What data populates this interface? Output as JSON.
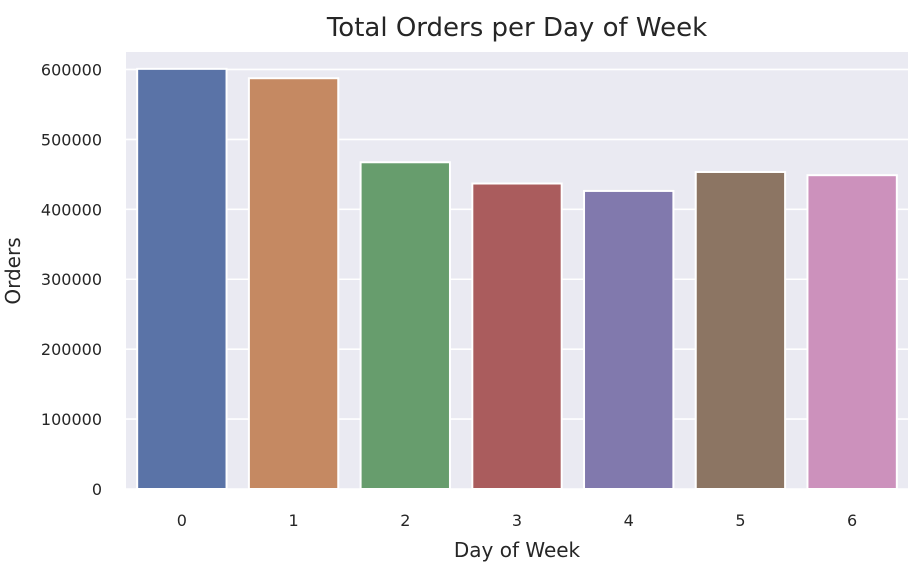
{
  "chart_data": {
    "type": "bar",
    "title": "Total Orders per Day of Week",
    "xlabel": "Day of Week",
    "ylabel": "Orders",
    "categories": [
      "0",
      "1",
      "2",
      "3",
      "4",
      "5",
      "6"
    ],
    "values": [
      600900,
      587500,
      467300,
      436900,
      426300,
      453400,
      448800
    ],
    "ylim": [
      0,
      625000
    ],
    "yticks": [
      0,
      100000,
      200000,
      300000,
      400000,
      500000,
      600000
    ],
    "grid": true,
    "legend": "none",
    "colors": [
      "#5a73a7",
      "#c58962",
      "#679d6d",
      "#aa5c5d",
      "#8179ad",
      "#8c7563",
      "#cc91bc"
    ],
    "background": "#eaeaf2"
  }
}
